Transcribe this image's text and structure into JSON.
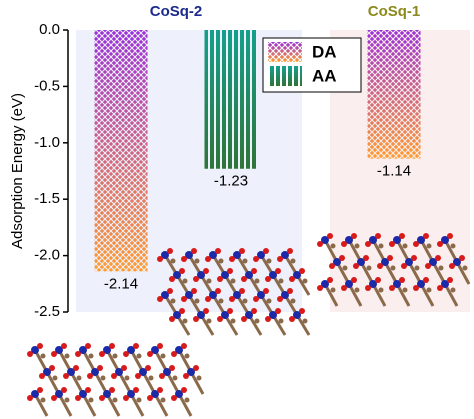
{
  "chart_data": {
    "type": "bar",
    "y_label": "Adsorption Energy (eV)",
    "categories": [
      "CoSq-2",
      "CoSq-1"
    ],
    "category_colors": [
      "#1c2a8c",
      "#8c8a1c"
    ],
    "series": [
      {
        "name": "DA",
        "colors": [
          "#9a2fd8",
          "#ff9b2e"
        ],
        "pattern": "crosshatch",
        "values": [
          -2.14,
          -1.14
        ]
      },
      {
        "name": "AA",
        "colors": [
          "#14a08c",
          "#2f7438"
        ],
        "pattern": "stripes",
        "values": [
          -1.23,
          null
        ]
      }
    ],
    "ylim": [
      0,
      -2.5
    ],
    "yticks": [
      {
        "value": 0,
        "label": "0.0"
      },
      -0.5,
      {
        "value": -1,
        "label": "-1.0"
      },
      -1.5,
      {
        "value": -2,
        "label": "-2.0"
      },
      -2.5
    ]
  }
}
